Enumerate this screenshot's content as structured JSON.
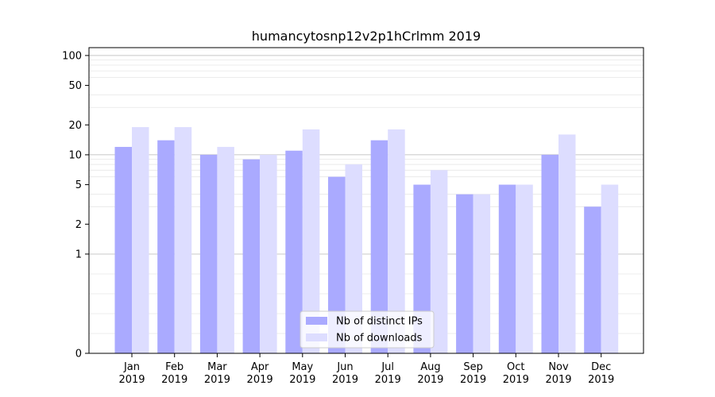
{
  "chart_data": {
    "type": "bar",
    "title": "humancytosnp12v2p1hCrlmm 2019",
    "xlabel": "",
    "ylabel": "",
    "yscale": "symlog",
    "ylim": [
      0,
      120
    ],
    "yticks": [
      "0",
      "1",
      "2",
      "5",
      "10",
      "20",
      "50",
      "100"
    ],
    "grid": "y-major and y-minor",
    "legend_position": "bottom-center",
    "categories": [
      [
        "Jan",
        "2019"
      ],
      [
        "Feb",
        "2019"
      ],
      [
        "Mar",
        "2019"
      ],
      [
        "Apr",
        "2019"
      ],
      [
        "May",
        "2019"
      ],
      [
        "Jun",
        "2019"
      ],
      [
        "Jul",
        "2019"
      ],
      [
        "Aug",
        "2019"
      ],
      [
        "Sep",
        "2019"
      ],
      [
        "Oct",
        "2019"
      ],
      [
        "Nov",
        "2019"
      ],
      [
        "Dec",
        "2019"
      ]
    ],
    "series": [
      {
        "name": "Nb of distinct IPs",
        "color": "#aaaaff",
        "values": [
          12,
          14,
          10,
          9,
          11,
          6,
          14,
          5,
          4,
          5,
          10,
          3
        ]
      },
      {
        "name": "Nb of downloads",
        "color": "#ddddff",
        "values": [
          19,
          19,
          12,
          10,
          18,
          8,
          18,
          7,
          4,
          5,
          16,
          5
        ]
      }
    ]
  }
}
